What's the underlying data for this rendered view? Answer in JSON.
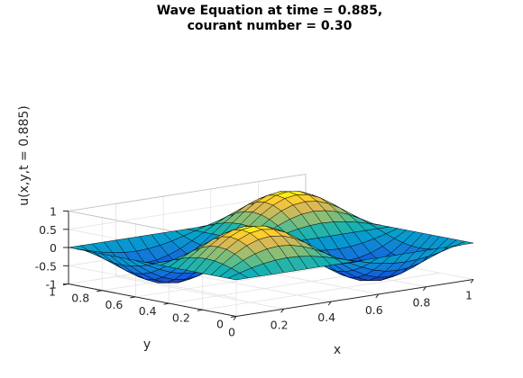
{
  "chart_data": {
    "type": "surface",
    "title_line1": "Wave Equation at time = 0.885,",
    "title_line2": "courant number = 0.30",
    "xlabel": "x",
    "ylabel": "y",
    "zlabel": "u(x,y,t = 0.885)",
    "xlim": [
      0,
      1
    ],
    "ylim": [
      0,
      1
    ],
    "zlim": [
      -1,
      1
    ],
    "x_ticks": [
      "0",
      "0.2",
      "0.4",
      "0.6",
      "0.8",
      "1"
    ],
    "y_ticks": [
      "0",
      "0.2",
      "0.4",
      "0.6",
      "0.8",
      "1"
    ],
    "z_ticks": [
      "-1",
      "-0.5",
      "0",
      "0.5",
      "1"
    ],
    "function": "u(x,y) = sin(2πx) · sin(2πy)",
    "grid": true,
    "colormap": "parula",
    "grid_points": 21
  }
}
